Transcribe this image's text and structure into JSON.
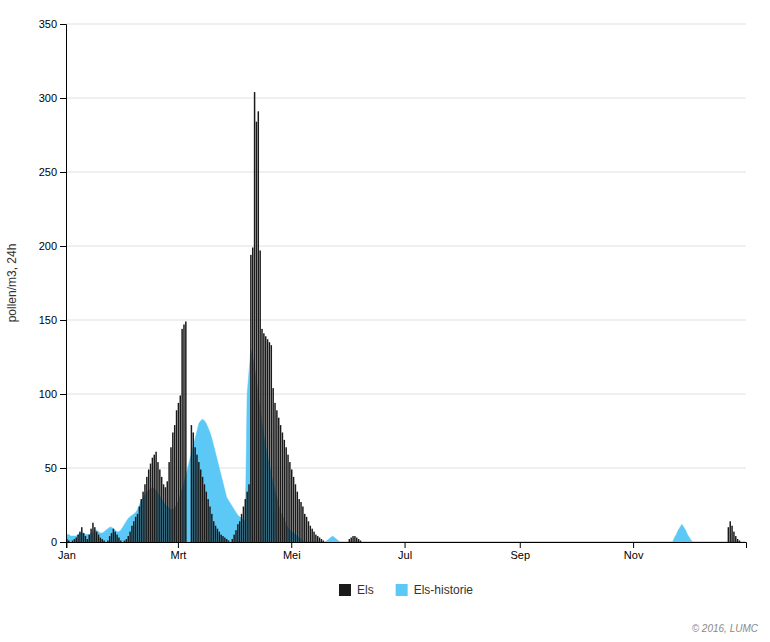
{
  "chart_data": {
    "type": "bar",
    "ylabel": "pollen/m3, 24h",
    "ylim": [
      0,
      350
    ],
    "yticks": [
      0,
      50,
      100,
      150,
      200,
      250,
      300,
      350
    ],
    "grid": true,
    "legend": "bottom",
    "annotations": [
      "© 2016, LUMC"
    ],
    "categories": [
      "Jan",
      null,
      null,
      null,
      null,
      null,
      null,
      null,
      null,
      null,
      null,
      null,
      null,
      null,
      null,
      null,
      null,
      null,
      null,
      null,
      null,
      null,
      null,
      null,
      null,
      null,
      null,
      null,
      null,
      null,
      null,
      null,
      null,
      null,
      null,
      null,
      null,
      null,
      null,
      null,
      null,
      null,
      null,
      null,
      null,
      null,
      null,
      null,
      null,
      null,
      null,
      null,
      null,
      null,
      null,
      null,
      null,
      null,
      null,
      null,
      "Mrt",
      null,
      null,
      null,
      null,
      null,
      null,
      null,
      null,
      null,
      null,
      null,
      null,
      null,
      null,
      null,
      null,
      null,
      null,
      null,
      null,
      null,
      null,
      null,
      null,
      null,
      null,
      null,
      null,
      null,
      null,
      null,
      null,
      null,
      null,
      null,
      null,
      null,
      null,
      null,
      null,
      null,
      null,
      null,
      null,
      null,
      null,
      null,
      null,
      null,
      null,
      null,
      null,
      null,
      null,
      null,
      null,
      null,
      null,
      null,
      null,
      "Mei",
      null,
      null,
      null,
      null,
      null,
      null,
      null,
      null,
      null,
      null,
      null,
      null,
      null,
      null,
      null,
      null,
      null,
      null,
      null,
      null,
      null,
      null,
      null,
      null,
      null,
      null,
      null,
      null,
      null,
      null,
      null,
      null,
      null,
      null,
      null,
      null,
      null,
      null,
      null,
      null,
      null,
      null,
      null,
      null,
      null,
      null,
      null,
      null,
      null,
      null,
      null,
      null,
      null,
      null,
      null,
      null,
      null,
      null,
      null,
      null,
      "Jul",
      null,
      null,
      null,
      null,
      null,
      null,
      null,
      null,
      null,
      null,
      null,
      null,
      null,
      null,
      null,
      null,
      null,
      null,
      null,
      null,
      null,
      null,
      null,
      null,
      null,
      null,
      null,
      null,
      null,
      null,
      null,
      null,
      null,
      null,
      null,
      null,
      null,
      null,
      null,
      null,
      null,
      null,
      null,
      null,
      null,
      null,
      null,
      null,
      null,
      null,
      null,
      null,
      null,
      null,
      null,
      null,
      null,
      null,
      null,
      null,
      null,
      "Sep",
      null,
      null,
      null,
      null,
      null,
      null,
      null,
      null,
      null,
      null,
      null,
      null,
      null,
      null,
      null,
      null,
      null,
      null,
      null,
      null,
      null,
      null,
      null,
      null,
      null,
      null,
      null,
      null,
      null,
      null,
      null,
      null,
      null,
      null,
      null,
      null,
      null,
      null,
      null,
      null,
      null,
      null,
      null,
      null,
      null,
      null,
      null,
      null,
      null,
      null,
      null,
      null,
      null,
      null,
      null,
      null,
      null,
      null,
      null,
      null,
      "Nov",
      null,
      null,
      null,
      null,
      null,
      null,
      null,
      null,
      null,
      null,
      null,
      null,
      null,
      null,
      null,
      null,
      null,
      null,
      null,
      null,
      null,
      null,
      null,
      null,
      null,
      null,
      null,
      null,
      null,
      null,
      null,
      null,
      null,
      null,
      null,
      null,
      null,
      null,
      null,
      null,
      null,
      null,
      null,
      null,
      null,
      null,
      null,
      null,
      null,
      null,
      null,
      null,
      null,
      null,
      null,
      null,
      null,
      null,
      null,
      null
    ],
    "series": [
      {
        "name": "Els",
        "type": "bar",
        "color": "#1a1a1a",
        "values": [
          2,
          1,
          0,
          1,
          2,
          3,
          5,
          7,
          10,
          6,
          4,
          2,
          5,
          9,
          13,
          10,
          7,
          5,
          3,
          2,
          1,
          0,
          1,
          4,
          6,
          9,
          7,
          5,
          3,
          1,
          0,
          1,
          2,
          4,
          7,
          11,
          14,
          17,
          19,
          24,
          29,
          34,
          39,
          44,
          49,
          53,
          57,
          59,
          61,
          54,
          49,
          44,
          39,
          37,
          41,
          54,
          64,
          74,
          79,
          89,
          94,
          99,
          144,
          147,
          149,
          0,
          0,
          79,
          74,
          64,
          59,
          54,
          49,
          44,
          39,
          34,
          29,
          24,
          19,
          14,
          11,
          9,
          7,
          5,
          4,
          3,
          2,
          1,
          0,
          2,
          5,
          8,
          12,
          14,
          19,
          24,
          29,
          34,
          39,
          194,
          199,
          304,
          284,
          291,
          197,
          144,
          141,
          139,
          137,
          135,
          133,
          104,
          94,
          89,
          84,
          79,
          74,
          69,
          64,
          59,
          54,
          49,
          44,
          39,
          34,
          29,
          27,
          24,
          19,
          17,
          14,
          11,
          9,
          7,
          5,
          4,
          3,
          2,
          1,
          0,
          0,
          0,
          0,
          0,
          0,
          0,
          0,
          0,
          0,
          0,
          0,
          0,
          2,
          3,
          4,
          4,
          3,
          2,
          1,
          0,
          0,
          0,
          0,
          0,
          0,
          0,
          0,
          0,
          0,
          0,
          0,
          0,
          0,
          0,
          0,
          0,
          0,
          0,
          0,
          0,
          0,
          0,
          0,
          0,
          0,
          0,
          0,
          0,
          0,
          0,
          0,
          0,
          0,
          0,
          0,
          0,
          0,
          0,
          0,
          0,
          0,
          0,
          0,
          0,
          0,
          0,
          0,
          0,
          0,
          0,
          0,
          0,
          0,
          0,
          0,
          0,
          0,
          0,
          0,
          0,
          0,
          0,
          0,
          0,
          0,
          0,
          0,
          0,
          0,
          0,
          0,
          0,
          0,
          0,
          0,
          0,
          0,
          0,
          0,
          0,
          0,
          0,
          0,
          0,
          0,
          0,
          0,
          0,
          0,
          0,
          0,
          0,
          0,
          0,
          0,
          0,
          0,
          0,
          0,
          0,
          0,
          0,
          0,
          0,
          0,
          0,
          0,
          0,
          0,
          0,
          0,
          0,
          0,
          0,
          0,
          0,
          0,
          0,
          0,
          0,
          0,
          0,
          0,
          0,
          0,
          0,
          0,
          0,
          0,
          0,
          0,
          0,
          0,
          0,
          0,
          0,
          0,
          0,
          0,
          0,
          0,
          0,
          0,
          0,
          0,
          0,
          0,
          0,
          0,
          0,
          0,
          0,
          0,
          0,
          0,
          0,
          0,
          0,
          0,
          0,
          0,
          0,
          0,
          0,
          0,
          0,
          0,
          0,
          0,
          0,
          0,
          0,
          0,
          0,
          0,
          0,
          0,
          0,
          0,
          0,
          0,
          0,
          0,
          0,
          0,
          0,
          0,
          0,
          0,
          0,
          0,
          0,
          0,
          0,
          0,
          0,
          10,
          14,
          11,
          7,
          4,
          2,
          1,
          0,
          0,
          0
        ]
      },
      {
        "name": "Els-historie",
        "type": "area",
        "color": "#5bc8f5",
        "values": [
          5,
          5,
          4,
          4,
          4,
          4,
          5,
          6,
          6,
          6,
          5,
          5,
          5,
          6,
          7,
          8,
          8,
          7,
          6,
          6,
          7,
          8,
          9,
          10,
          10,
          9,
          8,
          7,
          7,
          8,
          10,
          12,
          14,
          16,
          17,
          18,
          19,
          20,
          22,
          25,
          28,
          30,
          32,
          34,
          35,
          36,
          37,
          36,
          35,
          33,
          31,
          29,
          27,
          25,
          24,
          23,
          22,
          22,
          23,
          25,
          28,
          32,
          36,
          40,
          45,
          50,
          55,
          60,
          65,
          70,
          75,
          80,
          82,
          83,
          82,
          80,
          77,
          74,
          70,
          65,
          60,
          55,
          50,
          45,
          40,
          35,
          30,
          28,
          26,
          24,
          22,
          20,
          18,
          17,
          16,
          15,
          14,
          100,
          115,
          130,
          125,
          118,
          110,
          100,
          90,
          80,
          72,
          65,
          58,
          52,
          46,
          40,
          35,
          30,
          25,
          20,
          18,
          15,
          12,
          10,
          8,
          7,
          6,
          5,
          4,
          3,
          2,
          1,
          0,
          0,
          0,
          0,
          0,
          0,
          0,
          0,
          0,
          0,
          0,
          0,
          1,
          2,
          3,
          4,
          3,
          2,
          1,
          0,
          0,
          0,
          0,
          0,
          0,
          0,
          0,
          0,
          0,
          0,
          0,
          0,
          0,
          0,
          0,
          0,
          0,
          0,
          0,
          0,
          0,
          0,
          0,
          0,
          0,
          0,
          0,
          0,
          0,
          0,
          0,
          0,
          0,
          0,
          0,
          0,
          0,
          0,
          0,
          0,
          0,
          0,
          0,
          0,
          0,
          0,
          0,
          0,
          0,
          0,
          0,
          0,
          0,
          0,
          0,
          0,
          0,
          0,
          0,
          0,
          0,
          0,
          0,
          0,
          0,
          0,
          0,
          0,
          0,
          0,
          0,
          0,
          0,
          0,
          0,
          0,
          0,
          0,
          0,
          0,
          0,
          0,
          0,
          0,
          0,
          0,
          0,
          0,
          0,
          0,
          0,
          0,
          0,
          0,
          0,
          0,
          0,
          0,
          0,
          0,
          0,
          0,
          0,
          0,
          0,
          0,
          0,
          0,
          0,
          0,
          0,
          0,
          0,
          0,
          0,
          0,
          0,
          0,
          0,
          0,
          0,
          0,
          0,
          0,
          0,
          0,
          0,
          0,
          0,
          0,
          0,
          0,
          0,
          0,
          0,
          0,
          0,
          0,
          0,
          0,
          0,
          0,
          0,
          0,
          0,
          0,
          0,
          0,
          0,
          0,
          0,
          0,
          0,
          0,
          0,
          0,
          0,
          0,
          0,
          0,
          0,
          0,
          0,
          0,
          0,
          0,
          0,
          0,
          0,
          0,
          0,
          0,
          0,
          0,
          0,
          0,
          0,
          0,
          0,
          3,
          5,
          8,
          10,
          12,
          10,
          8,
          5,
          3,
          1,
          0,
          0,
          0,
          0,
          0,
          0,
          0,
          0,
          0,
          0,
          0,
          0,
          0,
          0,
          0,
          0,
          0,
          0,
          0,
          0,
          0,
          0,
          0,
          0,
          0,
          0,
          0,
          0,
          0
        ]
      }
    ]
  }
}
